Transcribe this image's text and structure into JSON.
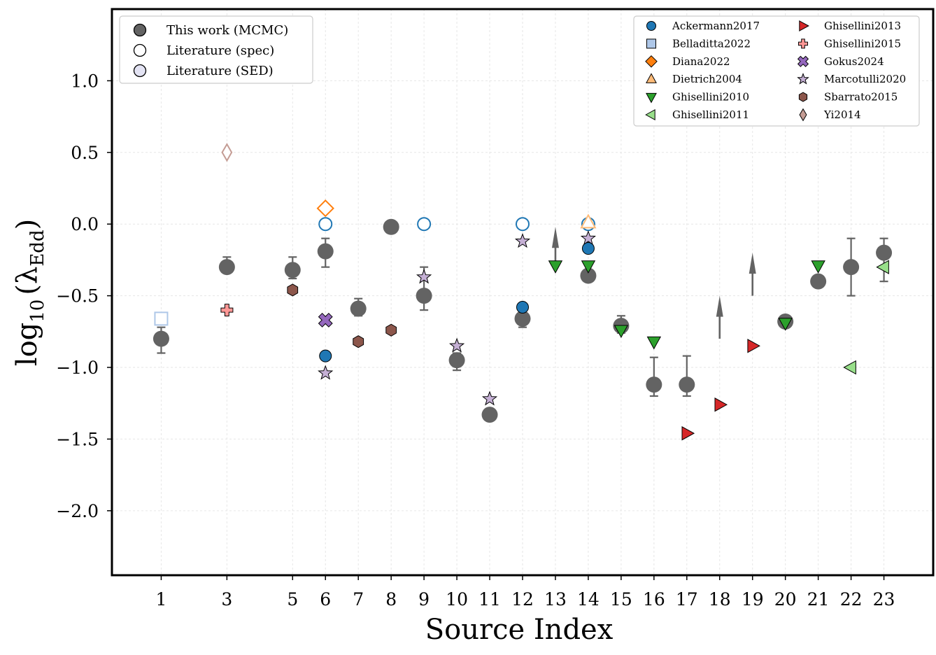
{
  "chart_data": {
    "type": "scatter",
    "title": "",
    "xlabel": "Source Index",
    "ylabel_main": "log",
    "ylabel_sub": "10",
    "ylabel_lambda": "(λ",
    "ylabel_lambda_sub": "Edd",
    "ylabel_close": ")",
    "xlim": [
      -0.5,
      24.5
    ],
    "ylim": [
      -2.45,
      1.5
    ],
    "xticks": [
      1,
      3,
      5,
      6,
      7,
      8,
      9,
      10,
      11,
      12,
      13,
      14,
      15,
      16,
      17,
      18,
      19,
      20,
      21,
      22,
      23
    ],
    "yticks": [
      {
        "value": 1.0,
        "label": "1.0"
      },
      {
        "value": 0.5,
        "label": "0.5"
      },
      {
        "value": 0.0,
        "label": "0.0"
      },
      {
        "value": -0.5,
        "label": "−0.5"
      },
      {
        "value": -1.0,
        "label": "−1.0"
      },
      {
        "value": -1.5,
        "label": "−1.5"
      },
      {
        "value": -2.0,
        "label": "−2.0"
      }
    ],
    "grid": true,
    "mcmc": {
      "name": "This work (MCMC)",
      "color": "#636363",
      "points": [
        {
          "x": 1,
          "y": -0.8,
          "lo": -0.9,
          "hi": -0.72
        },
        {
          "x": 3,
          "y": -0.3,
          "lo": -0.33,
          "hi": -0.23
        },
        {
          "x": 5,
          "y": -0.32,
          "lo": -0.38,
          "hi": -0.23
        },
        {
          "x": 6,
          "y": -0.19,
          "lo": -0.3,
          "hi": -0.1
        },
        {
          "x": 7,
          "y": -0.59,
          "lo": -0.64,
          "hi": -0.52
        },
        {
          "x": 8,
          "y": -0.02,
          "lo": null,
          "hi": null
        },
        {
          "x": 9,
          "y": -0.5,
          "lo": -0.6,
          "hi": -0.3
        },
        {
          "x": 10,
          "y": -0.95,
          "lo": -1.02,
          "hi": -0.9
        },
        {
          "x": 11,
          "y": -1.33,
          "lo": null,
          "hi": null
        },
        {
          "x": 12,
          "y": -0.66,
          "lo": -0.72,
          "hi": -0.6
        },
        {
          "x": 14,
          "y": -0.36,
          "lo": null,
          "hi": null
        },
        {
          "x": 15,
          "y": -0.71,
          "lo": -0.76,
          "hi": -0.64
        },
        {
          "x": 16,
          "y": -1.12,
          "lo": -1.2,
          "hi": -0.93
        },
        {
          "x": 17,
          "y": -1.12,
          "lo": -1.2,
          "hi": -0.92
        },
        {
          "x": 20,
          "y": -0.68,
          "lo": null,
          "hi": null
        },
        {
          "x": 21,
          "y": -0.4,
          "lo": null,
          "hi": null
        },
        {
          "x": 22,
          "y": -0.3,
          "lo": -0.5,
          "hi": -0.1
        },
        {
          "x": 23,
          "y": -0.2,
          "lo": -0.4,
          "hi": -0.1
        }
      ],
      "lower_limits": [
        {
          "x": 13,
          "y_from": -0.32,
          "y_to": -0.02
        },
        {
          "x": 18,
          "y_from": -0.8,
          "y_to": -0.5
        },
        {
          "x": 19,
          "y_from": -0.5,
          "y_to": -0.2
        }
      ]
    },
    "literature": [
      {
        "name": "Ackermann2017",
        "marker": "circle",
        "color": "#1f77b4",
        "points": [
          {
            "x": 6,
            "y": -0.92,
            "hollow": false
          },
          {
            "x": 12,
            "y": -0.58,
            "hollow": false
          },
          {
            "x": 14,
            "y": -0.17,
            "hollow": false
          },
          {
            "x": 6,
            "y": 0.0,
            "hollow": true
          },
          {
            "x": 9,
            "y": 0.0,
            "hollow": true
          },
          {
            "x": 12,
            "y": 0.0,
            "hollow": true
          },
          {
            "x": 14,
            "y": 0.0,
            "hollow": true
          }
        ]
      },
      {
        "name": "Belladitta2022",
        "marker": "square",
        "color": "#aec7e8",
        "points": [
          {
            "x": 1,
            "y": -0.66,
            "hollow": true
          }
        ]
      },
      {
        "name": "Diana2022",
        "marker": "diamond",
        "color": "#ff7f0e",
        "points": [
          {
            "x": 6,
            "y": 0.11,
            "hollow": true
          }
        ]
      },
      {
        "name": "Dietrich2004",
        "marker": "triangle-up",
        "color": "#ffbb78",
        "points": [
          {
            "x": 14,
            "y": 0.01,
            "hollow": true
          }
        ]
      },
      {
        "name": "Ghisellini2010",
        "marker": "triangle-down",
        "color": "#2ca02c",
        "points": [
          {
            "x": 13,
            "y": -0.29,
            "hollow": false
          },
          {
            "x": 14,
            "y": -0.29,
            "hollow": false
          },
          {
            "x": 15,
            "y": -0.74,
            "hollow": false
          },
          {
            "x": 16,
            "y": -0.82,
            "hollow": false
          },
          {
            "x": 20,
            "y": -0.69,
            "hollow": false
          },
          {
            "x": 21,
            "y": -0.29,
            "hollow": false
          }
        ]
      },
      {
        "name": "Ghisellini2011",
        "marker": "triangle-left",
        "color": "#98df8a",
        "points": [
          {
            "x": 22,
            "y": -1.0,
            "hollow": false
          },
          {
            "x": 23,
            "y": -0.3,
            "hollow": false
          }
        ]
      },
      {
        "name": "Ghisellini2013",
        "marker": "triangle-right",
        "color": "#d62728",
        "points": [
          {
            "x": 17,
            "y": -1.46,
            "hollow": false
          },
          {
            "x": 18,
            "y": -1.26,
            "hollow": false
          },
          {
            "x": 19,
            "y": -0.85,
            "hollow": false
          }
        ]
      },
      {
        "name": "Ghisellini2015",
        "marker": "plus",
        "color": "#ff9896",
        "points": [
          {
            "x": 3,
            "y": -0.6,
            "hollow": false
          }
        ]
      },
      {
        "name": "Gokus2024",
        "marker": "x",
        "color": "#9467bd",
        "points": [
          {
            "x": 6,
            "y": -0.67,
            "hollow": false
          }
        ]
      },
      {
        "name": "Marcotulli2020",
        "marker": "star",
        "color": "#c5b0d5",
        "points": [
          {
            "x": 6,
            "y": -1.04,
            "hollow": false
          },
          {
            "x": 9,
            "y": -0.37,
            "hollow": false
          },
          {
            "x": 10,
            "y": -0.85,
            "hollow": false
          },
          {
            "x": 11,
            "y": -1.22,
            "hollow": false
          },
          {
            "x": 12,
            "y": -0.12,
            "hollow": false
          },
          {
            "x": 14,
            "y": -0.1,
            "hollow": false
          }
        ]
      },
      {
        "name": "Sbarrato2015",
        "marker": "hexagon",
        "color": "#8c564b",
        "points": [
          {
            "x": 5,
            "y": -0.46,
            "hollow": false
          },
          {
            "x": 7,
            "y": -0.82,
            "hollow": false
          },
          {
            "x": 8,
            "y": -0.74,
            "hollow": false
          }
        ]
      },
      {
        "name": "Yi2014",
        "marker": "thin-diamond",
        "color": "#c49c94",
        "points": [
          {
            "x": 3,
            "y": 0.5,
            "hollow": true
          }
        ]
      }
    ],
    "legend_types": [
      {
        "label": "This work (MCMC)",
        "fill": "#636363"
      },
      {
        "label": "Literature (spec)",
        "fill": "#ffffff"
      },
      {
        "label": "Literature (SED)",
        "fill": "#e3e3f3"
      }
    ],
    "legend_type_placement": "top-left",
    "legend_refs_placement": "top-right"
  }
}
